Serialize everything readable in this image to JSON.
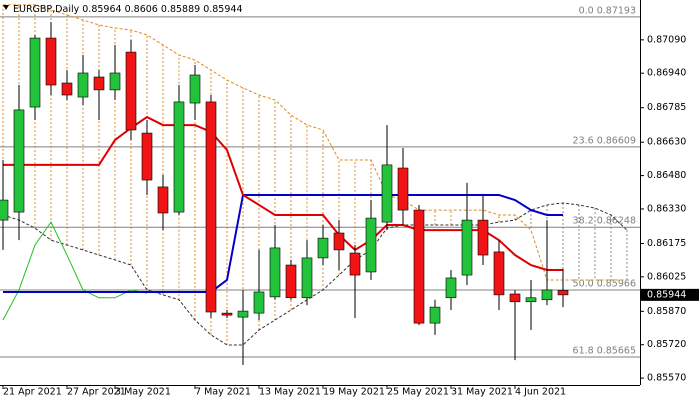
{
  "chart_data": {
    "type": "candlestick",
    "symbol": "EURGBP,Daily",
    "categories": [
      "21 Apr 2021",
      null,
      null,
      null,
      "27 Apr 2021",
      null,
      null,
      "3 May 2021",
      null,
      null,
      null,
      null,
      "7 May 2021",
      null,
      null,
      null,
      "13 May 2021",
      null,
      null,
      null,
      "19 May 2021",
      null,
      null,
      null,
      "25 May 2021",
      null,
      null,
      null,
      "31 May 2021",
      null,
      null,
      null,
      "4 Jun 2021",
      null,
      null,
      null,
      null,
      null,
      null,
      null
    ],
    "open": [
      0.8628,
      0.86316,
      0.86788,
      0.87098,
      0.86896,
      0.86833,
      0.86923,
      0.86865,
      0.87035,
      0.86671,
      0.86429,
      0.86316,
      0.86806,
      0.86811,
      0.85862,
      0.85844,
      0.85862,
      0.85935,
      0.86078,
      0.85931,
      0.8611,
      0.86222,
      0.86132,
      0.86047,
      0.86271,
      0.86514,
      0.86325,
      0.85817,
      0.85931,
      0.86033,
      0.8628,
      0.86137,
      0.85948,
      0.85913,
      0.85922,
      0.85964,
      null,
      null,
      null,
      null
    ],
    "high": [
      0.8655,
      0.86887,
      0.87112,
      0.8717,
      0.86954,
      0.87022,
      0.86954,
      0.87067,
      0.87089,
      0.8673,
      0.86483,
      0.86887,
      0.86977,
      0.86842,
      0.85876,
      0.85966,
      0.86146,
      0.86258,
      0.86101,
      0.8619,
      0.86258,
      0.8628,
      0.86168,
      0.8637,
      0.86707,
      0.86604,
      0.86348,
      0.85922,
      0.86056,
      0.86447,
      0.86393,
      0.8619,
      0.85966,
      0.86011,
      0.8628,
      0.8606,
      null,
      null,
      null,
      null
    ],
    "low": [
      0.86146,
      0.8619,
      0.8673,
      0.86842,
      0.8682,
      0.86797,
      0.8673,
      0.8682,
      0.8664,
      0.86393,
      0.86235,
      0.86303,
      0.8673,
      0.8584,
      0.8584,
      0.85629,
      0.85831,
      0.85922,
      0.85922,
      0.85898,
      0.86078,
      0.86056,
      0.8584,
      0.86011,
      0.86235,
      0.86258,
      0.85808,
      0.85764,
      0.85876,
      0.85988,
      0.86078,
      0.85876,
      0.85651,
      0.85786,
      0.85898,
      0.85889,
      null,
      null,
      null,
      null
    ],
    "close": [
      0.8637,
      0.86775,
      0.87098,
      0.86887,
      0.86842,
      0.86941,
      0.86865,
      0.86941,
      0.86685,
      0.8646,
      0.86312,
      0.86811,
      0.86932,
      0.85867,
      0.85853,
      0.85871,
      0.85957,
      0.86155,
      0.85931,
      0.8611,
      0.86199,
      0.86146,
      0.86033,
      0.86289,
      0.86528,
      0.86325,
      0.85817,
      0.85889,
      0.8602,
      0.8628,
      0.86123,
      0.85944,
      0.85913,
      0.85931,
      0.85966,
      0.85944,
      null,
      null,
      null,
      null
    ],
    "up_color": "#22c33a",
    "down_color": "#f01414",
    "tenkan": {
      "color": "#e00000",
      "values": [
        0.86528,
        0.86528,
        0.86528,
        0.86528,
        0.86528,
        0.86528,
        0.86528,
        0.8664,
        0.86694,
        0.86743,
        0.86707,
        0.86707,
        0.86707,
        0.86676,
        0.86595,
        0.86393,
        0.86348,
        0.86303,
        0.86303,
        0.86303,
        0.86303,
        0.86213,
        0.86146,
        0.8619,
        0.86258,
        0.86258,
        0.86235,
        0.86235,
        0.86235,
        0.86235,
        0.86235,
        0.8619,
        0.86123,
        0.86078,
        0.86056,
        0.86056,
        null,
        null,
        null,
        null
      ]
    },
    "kijun": {
      "color": "#0000c8",
      "values": [
        0.85957,
        0.85957,
        0.85957,
        0.85957,
        0.85957,
        0.85957,
        0.85957,
        0.85957,
        0.85957,
        0.85957,
        0.85957,
        0.85957,
        0.85957,
        0.85957,
        0.86011,
        0.86393,
        0.86393,
        0.86393,
        0.86393,
        0.86393,
        0.86393,
        0.86393,
        0.86393,
        0.86393,
        0.86393,
        0.86393,
        0.86393,
        0.86393,
        0.86393,
        0.86393,
        0.86393,
        0.86393,
        0.8637,
        0.86325,
        0.86303,
        0.86303,
        null,
        null,
        null,
        null
      ]
    },
    "chikou": {
      "color": "#22c022",
      "values": [
        0.85831,
        0.85966,
        0.86168,
        0.86271,
        0.86123,
        0.85966,
        0.85931,
        0.85931,
        0.85966,
        0.85952,
        null,
        null,
        null,
        null,
        null,
        null,
        null,
        null,
        null,
        null,
        null,
        null,
        null,
        null,
        null,
        null,
        null,
        null,
        null,
        null,
        null,
        null,
        null,
        null,
        null,
        null,
        null,
        null,
        null,
        null
      ]
    },
    "senkou_a": {
      "color": "#333333",
      "values": [
        0.86303,
        0.8628,
        0.86244,
        0.8619,
        0.86168,
        0.86146,
        0.86123,
        0.86101,
        0.86078,
        0.85966,
        0.85944,
        0.85922,
        0.85831,
        0.85764,
        0.85719,
        0.85719,
        0.85786,
        0.85831,
        0.85876,
        0.85922,
        0.85966,
        0.86033,
        0.86101,
        0.86146,
        0.86244,
        0.86258,
        0.86258,
        0.86258,
        0.86258,
        0.86258,
        0.86258,
        0.86271,
        0.8628,
        0.86325,
        0.86348,
        0.86357,
        0.86348,
        0.86334,
        0.86303,
        0.86235
      ]
    },
    "senkou_b": {
      "color": "#e08a20",
      "values": [
        0.87247,
        0.87247,
        0.87247,
        0.87224,
        0.87202,
        0.87179,
        0.87157,
        0.87143,
        0.87134,
        0.87112,
        0.87067,
        0.87022,
        0.86999,
        0.86954,
        0.86909,
        0.86874,
        0.86842,
        0.8682,
        0.86752,
        0.86707,
        0.86685,
        0.8655,
        0.8655,
        0.8655,
        0.86393,
        0.8637,
        0.86325,
        0.86325,
        0.86325,
        0.86325,
        0.86325,
        0.86303,
        0.86303,
        0.86235,
        0.86011,
        0.86011,
        0.86011,
        0.86011,
        0.86011,
        0.86011
      ]
    },
    "cloud_down_color": "#8c8c8c",
    "ylim": [
      0.85539,
      0.87269
    ],
    "yticks": [
      {
        "value": 0.8709,
        "label": "0.87090"
      },
      {
        "value": 0.8694,
        "label": "0.86940"
      },
      0.86785,
      {
        "value": 0.8663,
        "label": "0.86630"
      },
      {
        "value": 0.8648,
        "label": "0.86480"
      },
      {
        "value": 0.8633,
        "label": "0.86330"
      },
      0.86175,
      0.86025,
      {
        "value": 0.8587,
        "label": "0.85870"
      },
      {
        "value": 0.8572,
        "label": "0.85720"
      },
      {
        "value": 0.8557,
        "label": "0.85570"
      }
    ],
    "fib_color": "#808080",
    "fib_levels": [
      {
        "value": 0.87193,
        "label": "0.0 0.87193"
      },
      {
        "value": 0.86609,
        "label": "23.6 0.86609"
      },
      {
        "value": 0.86248,
        "label": "38.2 0.86248"
      },
      {
        "value": 0.85966,
        "label": "50.0 0.85966"
      },
      {
        "value": 0.85665,
        "label": "61.8 0.85665"
      }
    ],
    "last_price": 0.85944
  }
}
